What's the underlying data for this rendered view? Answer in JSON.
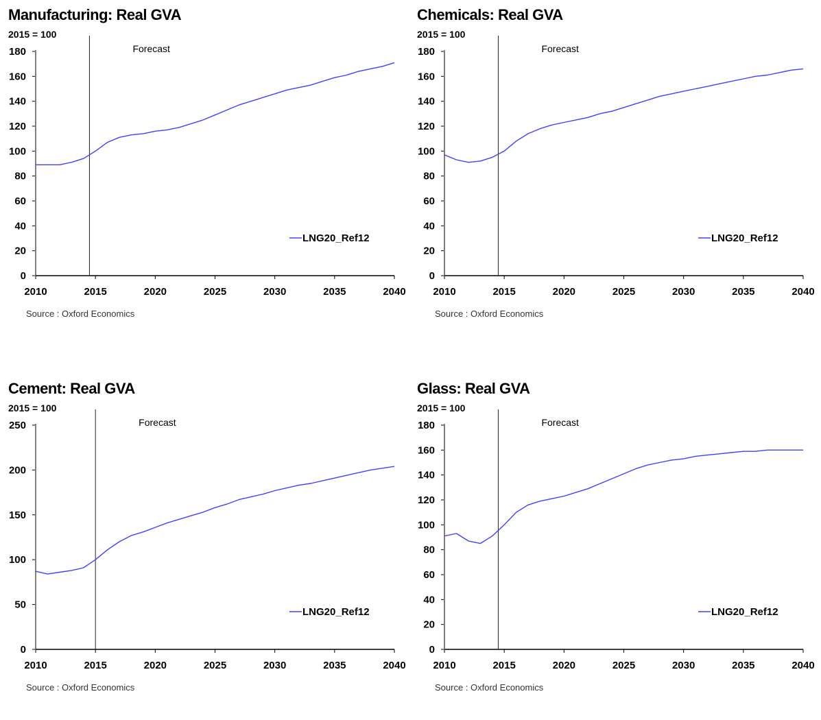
{
  "chart_data": [
    {
      "type": "line",
      "title": "Manufacturing: Real GVA",
      "unit_label": "2015 = 100",
      "forecast_label": "Forecast",
      "forecast_x": 2014.5,
      "source": "Source : Oxford Economics",
      "ylim": [
        0,
        180
      ],
      "yticks": [
        0,
        20,
        40,
        60,
        80,
        100,
        120,
        140,
        160,
        180
      ],
      "xlim": [
        2010,
        2040
      ],
      "xticks": [
        2010,
        2015,
        2020,
        2025,
        2030,
        2035,
        2040
      ],
      "grid": false,
      "legend_position": "bottom-right",
      "line_color": "#4040ff",
      "series": [
        {
          "name": "LNG20_Ref12",
          "x": [
            2010,
            2011,
            2012,
            2013,
            2014,
            2015,
            2016,
            2017,
            2018,
            2019,
            2020,
            2021,
            2022,
            2023,
            2024,
            2025,
            2026,
            2027,
            2028,
            2029,
            2030,
            2031,
            2032,
            2033,
            2034,
            2035,
            2036,
            2037,
            2038,
            2039,
            2040
          ],
          "values": [
            89,
            89,
            89,
            91,
            94,
            100,
            107,
            111,
            113,
            114,
            116,
            117,
            119,
            122,
            125,
            129,
            133,
            137,
            140,
            143,
            146,
            149,
            151,
            153,
            156,
            159,
            161,
            164,
            166,
            168,
            171
          ]
        }
      ]
    },
    {
      "type": "line",
      "title": "Chemicals: Real GVA",
      "unit_label": "2015 = 100",
      "forecast_label": "Forecast",
      "forecast_x": 2014.5,
      "source": "Source : Oxford Economics",
      "ylim": [
        0,
        180
      ],
      "yticks": [
        0,
        20,
        40,
        60,
        80,
        100,
        120,
        140,
        160,
        180
      ],
      "xlim": [
        2010,
        2040
      ],
      "xticks": [
        2010,
        2015,
        2020,
        2025,
        2030,
        2035,
        2040
      ],
      "grid": false,
      "legend_position": "bottom-right",
      "line_color": "#4040ff",
      "series": [
        {
          "name": "LNG20_Ref12",
          "x": [
            2010,
            2011,
            2012,
            2013,
            2014,
            2015,
            2016,
            2017,
            2018,
            2019,
            2020,
            2021,
            2022,
            2023,
            2024,
            2025,
            2026,
            2027,
            2028,
            2029,
            2030,
            2031,
            2032,
            2033,
            2034,
            2035,
            2036,
            2037,
            2038,
            2039,
            2040
          ],
          "values": [
            97,
            93,
            91,
            92,
            95,
            100,
            108,
            114,
            118,
            121,
            123,
            125,
            127,
            130,
            132,
            135,
            138,
            141,
            144,
            146,
            148,
            150,
            152,
            154,
            156,
            158,
            160,
            161,
            163,
            165,
            166
          ]
        }
      ]
    },
    {
      "type": "line",
      "title": "Cement: Real GVA",
      "unit_label": "2015 = 100",
      "forecast_label": "Forecast",
      "forecast_x": 2015,
      "source": "Source : Oxford Economics",
      "ylim": [
        0,
        250
      ],
      "yticks": [
        0,
        50,
        100,
        150,
        200,
        250
      ],
      "xlim": [
        2010,
        2040
      ],
      "xticks": [
        2010,
        2015,
        2020,
        2025,
        2030,
        2035,
        2040
      ],
      "grid": false,
      "legend_position": "bottom-right",
      "line_color": "#4040ff",
      "series": [
        {
          "name": "LNG20_Ref12",
          "x": [
            2010,
            2011,
            2012,
            2013,
            2014,
            2015,
            2016,
            2017,
            2018,
            2019,
            2020,
            2021,
            2022,
            2023,
            2024,
            2025,
            2026,
            2027,
            2028,
            2029,
            2030,
            2031,
            2032,
            2033,
            2034,
            2035,
            2036,
            2037,
            2038,
            2039,
            2040
          ],
          "values": [
            87,
            84,
            86,
            88,
            91,
            100,
            111,
            120,
            127,
            131,
            136,
            141,
            145,
            149,
            153,
            158,
            162,
            167,
            170,
            173,
            177,
            180,
            183,
            185,
            188,
            191,
            194,
            197,
            200,
            202,
            204
          ]
        }
      ]
    },
    {
      "type": "line",
      "title": "Glass: Real GVA",
      "unit_label": "2015 = 100",
      "forecast_label": "Forecast",
      "forecast_x": 2014.5,
      "source": "Source : Oxford Economics",
      "ylim": [
        0,
        180
      ],
      "yticks": [
        0,
        20,
        40,
        60,
        80,
        100,
        120,
        140,
        160,
        180
      ],
      "xlim": [
        2010,
        2040
      ],
      "xticks": [
        2010,
        2015,
        2020,
        2025,
        2030,
        2035,
        2040
      ],
      "grid": false,
      "legend_position": "bottom-right",
      "line_color": "#4040ff",
      "series": [
        {
          "name": "LNG20_Ref12",
          "x": [
            2010,
            2011,
            2012,
            2013,
            2014,
            2015,
            2016,
            2017,
            2018,
            2019,
            2020,
            2021,
            2022,
            2023,
            2024,
            2025,
            2026,
            2027,
            2028,
            2029,
            2030,
            2031,
            2032,
            2033,
            2034,
            2035,
            2036,
            2037,
            2038,
            2039,
            2040
          ],
          "values": [
            91,
            93,
            87,
            85,
            91,
            100,
            110,
            116,
            119,
            121,
            123,
            126,
            129,
            133,
            137,
            141,
            145,
            148,
            150,
            152,
            153,
            155,
            156,
            157,
            158,
            159,
            159,
            160,
            160,
            160,
            160
          ]
        }
      ]
    }
  ]
}
